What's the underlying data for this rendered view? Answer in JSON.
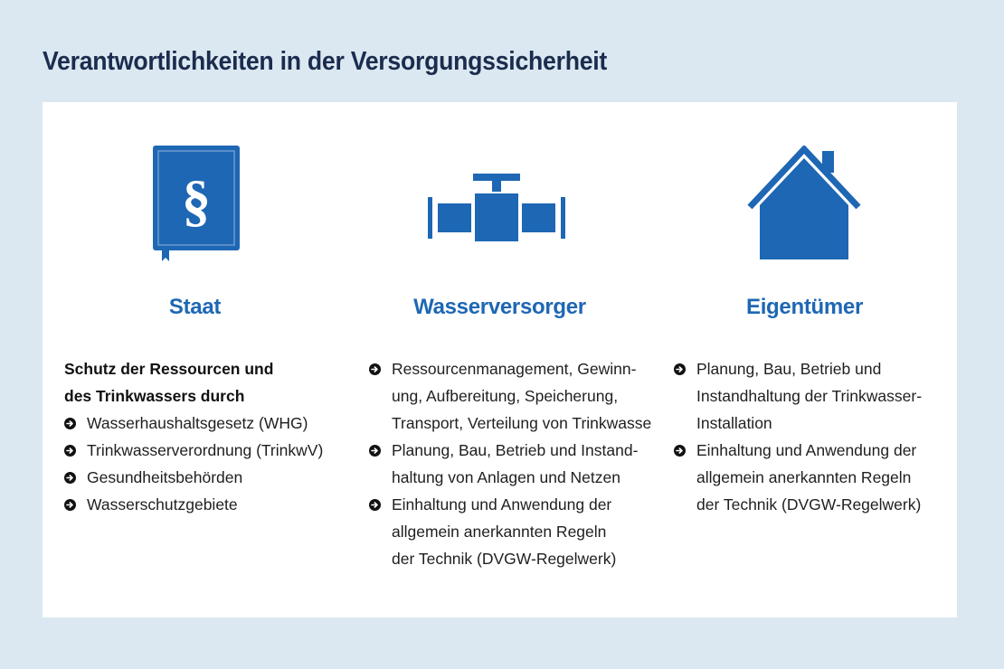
{
  "title": "Verantwortlichkeiten in der Versorgungssicherheit",
  "colors": {
    "background": "#dbe8f1",
    "panel": "#ffffff",
    "accent": "#1e67b4",
    "title": "#1b2c4e",
    "text": "#1f1f1f"
  },
  "columns": [
    {
      "icon": "paragraph-book-icon",
      "heading": "Staat",
      "lead": [
        "Schutz der Ressourcen und",
        "des Trinkwassers durch"
      ],
      "items": [
        [
          "Wasserhaushaltsgesetz (WHG)"
        ],
        [
          "Trinkwasserverordnung (TrinkwV)"
        ],
        [
          "Gesundheitsbehörden"
        ],
        [
          "Wasserschutzgebiete"
        ]
      ]
    },
    {
      "icon": "pipe-valve-icon",
      "heading": "Wasserversorger",
      "items": [
        [
          "Ressourcenmanagement, Gewinn-",
          "ung, Aufbereitung, Speicherung,",
          "Transport, Verteilung von Trinkwasser"
        ],
        [
          "Planung, Bau, Betrieb und Instand-",
          "haltung von Anlagen und Netzen"
        ],
        [
          "Einhaltung und Anwendung der",
          "allgemein anerkannten Regeln",
          "der Technik (DVGW-Regelwerk)"
        ]
      ]
    },
    {
      "icon": "house-icon",
      "heading": "Eigentümer",
      "items": [
        [
          "Planung, Bau, Betrieb und",
          "Instandhaltung der Trinkwasser-",
          "Installation"
        ],
        [
          "Einhaltung und Anwendung der",
          "allgemein anerkannten Regeln",
          "der Technik (DVGW-Regelwerk)"
        ]
      ]
    }
  ]
}
